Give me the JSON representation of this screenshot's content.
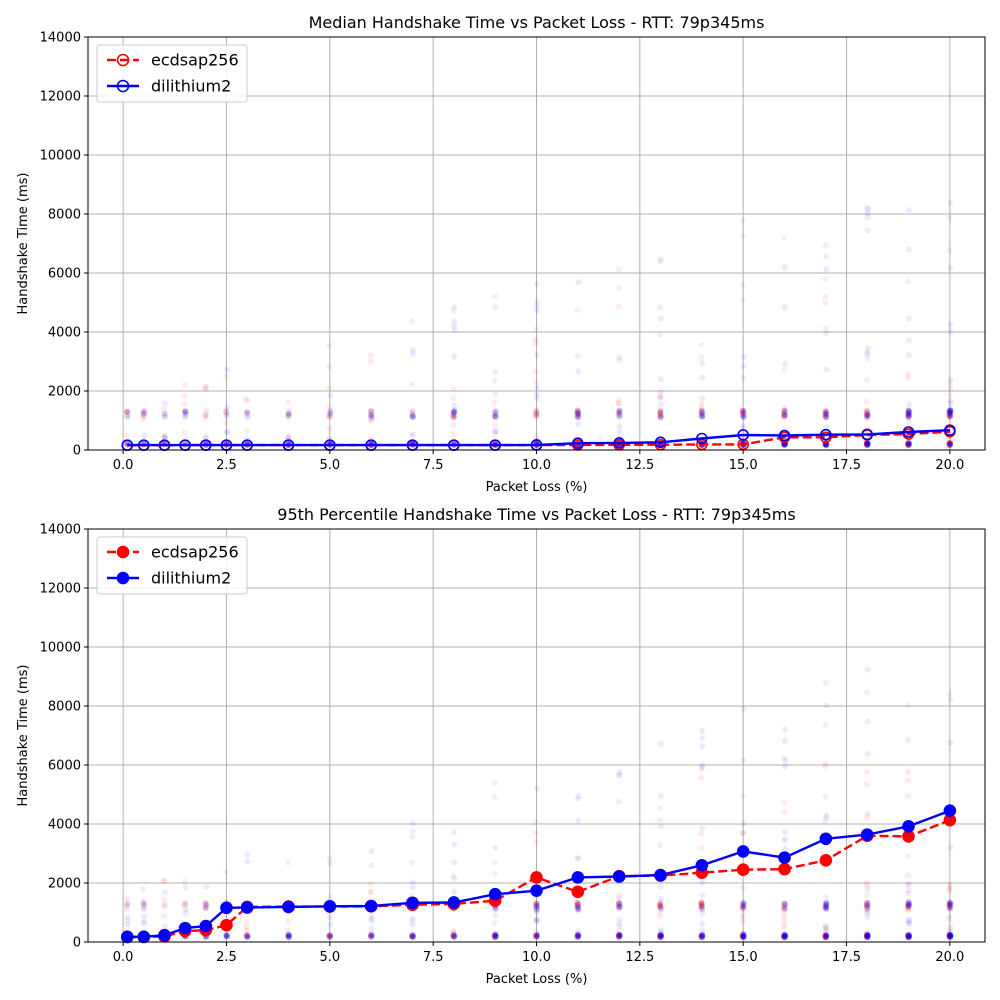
{
  "figure": {
    "background": "#ffffff"
  },
  "colors": {
    "ecdsap256": "#ff0000",
    "dilithium2": "#0000ff",
    "grid": "#b0b0b0",
    "legend_border": "#cccccc"
  },
  "chart_data": [
    {
      "type": "line",
      "title": "Median Handshake Time vs Packet Loss - RTT: 79p345ms",
      "xlabel": "Packet Loss (%)",
      "ylabel": "Handshake Time (ms)",
      "xlim": [
        -0.85,
        20.85
      ],
      "ylim": [
        0,
        14000
      ],
      "xticks": [
        "0.0",
        "2.5",
        "5.0",
        "7.5",
        "10.0",
        "12.5",
        "15.0",
        "17.5",
        "20.0"
      ],
      "yticks": [
        "0",
        "2000",
        "4000",
        "6000",
        "8000",
        "10000",
        "12000",
        "14000"
      ],
      "grid": true,
      "legend": "top-left",
      "marker_style": "hollow",
      "x": [
        0.1,
        0.5,
        1,
        1.5,
        2,
        2.5,
        3,
        4,
        5,
        6,
        7,
        8,
        9,
        10,
        11,
        12,
        13,
        14,
        15,
        16,
        17,
        18,
        19,
        20
      ],
      "series": [
        {
          "name": "ecdsap256",
          "line_style": "dashed",
          "values": [
            160,
            160,
            160,
            165,
            165,
            165,
            165,
            165,
            165,
            165,
            165,
            165,
            165,
            170,
            170,
            175,
            180,
            185,
            190,
            430,
            430,
            510,
            540,
            620
          ]
        },
        {
          "name": "dilithium2",
          "line_style": "solid",
          "values": [
            165,
            165,
            165,
            165,
            165,
            165,
            165,
            165,
            165,
            165,
            165,
            165,
            165,
            170,
            230,
            240,
            260,
            390,
            510,
            490,
            520,
            530,
            610,
            670
          ]
        }
      ]
    },
    {
      "type": "line",
      "title": "95th Percentile Handshake Time vs Packet Loss - RTT: 79p345ms",
      "xlabel": "Packet Loss (%)",
      "ylabel": "Handshake Time (ms)",
      "xlim": [
        -0.85,
        20.85
      ],
      "ylim": [
        0,
        14000
      ],
      "xticks": [
        "0.0",
        "2.5",
        "5.0",
        "7.5",
        "10.0",
        "12.5",
        "15.0",
        "17.5",
        "20.0"
      ],
      "yticks": [
        "0",
        "2000",
        "4000",
        "6000",
        "8000",
        "10000",
        "12000",
        "14000"
      ],
      "grid": true,
      "legend": "top-left",
      "marker_style": "filled",
      "x": [
        0.1,
        0.5,
        1,
        1.5,
        2,
        2.5,
        3,
        4,
        5,
        6,
        7,
        8,
        9,
        10,
        11,
        12,
        13,
        14,
        15,
        16,
        17,
        18,
        19,
        20
      ],
      "series": [
        {
          "name": "ecdsap256",
          "line_style": "dashed",
          "values": [
            170,
            170,
            190,
            370,
            400,
            570,
            1190,
            1200,
            1200,
            1210,
            1260,
            1290,
            1400,
            2190,
            1700,
            2230,
            2250,
            2350,
            2450,
            2470,
            2770,
            3600,
            3580,
            4130
          ]
        },
        {
          "name": "dilithium2",
          "line_style": "solid",
          "values": [
            175,
            175,
            230,
            470,
            540,
            1160,
            1170,
            1190,
            1210,
            1220,
            1330,
            1340,
            1620,
            1740,
            2190,
            2220,
            2270,
            2600,
            3070,
            2860,
            3500,
            3640,
            3920,
            4450
          ]
        }
      ]
    }
  ]
}
